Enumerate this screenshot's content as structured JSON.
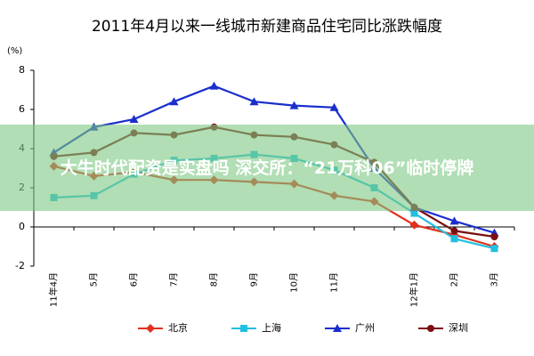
{
  "chart_data": {
    "type": "line",
    "title": "2011年4月以来一线城市新建商品住宅同比涨跌幅度",
    "y_label": "(%)",
    "annotation": "大牛时代配资是实盘吗 深交所：“21万科06”临时停牌",
    "categories": [
      "11年4月",
      "5月",
      "6月",
      "7月",
      "8月",
      "9月",
      "10月",
      "11月",
      null,
      "12年1月",
      "2月",
      "3月"
    ],
    "series": [
      {
        "name": "北京",
        "color": "#e0301e",
        "marker": "diamond",
        "values": [
          3.1,
          2.6,
          2.8,
          2.4,
          2.4,
          2.3,
          2.2,
          1.6,
          1.3,
          0.1,
          -0.4,
          -1.0
        ]
      },
      {
        "name": "上海",
        "color": "#22c0e0",
        "marker": "square",
        "values": [
          1.5,
          1.6,
          2.7,
          3.4,
          3.5,
          3.7,
          3.5,
          2.9,
          2.0,
          0.7,
          -0.6,
          -1.1
        ]
      },
      {
        "name": "广州",
        "color": "#1a2ecc",
        "marker": "triangle",
        "values": [
          3.8,
          5.1,
          5.5,
          6.4,
          7.2,
          6.4,
          6.2,
          6.1,
          3.0,
          1.0,
          0.3,
          -0.3
        ]
      },
      {
        "name": "深圳",
        "color": "#7a1010",
        "marker": "circle",
        "values": [
          3.6,
          3.8,
          4.8,
          4.7,
          5.1,
          4.7,
          4.6,
          4.2,
          3.3,
          1.0,
          -0.2,
          -0.5
        ]
      }
    ],
    "ylim": [
      -2,
      8
    ],
    "yticks": [
      -2,
      0,
      2,
      4,
      6,
      8
    ],
    "grid": false
  }
}
